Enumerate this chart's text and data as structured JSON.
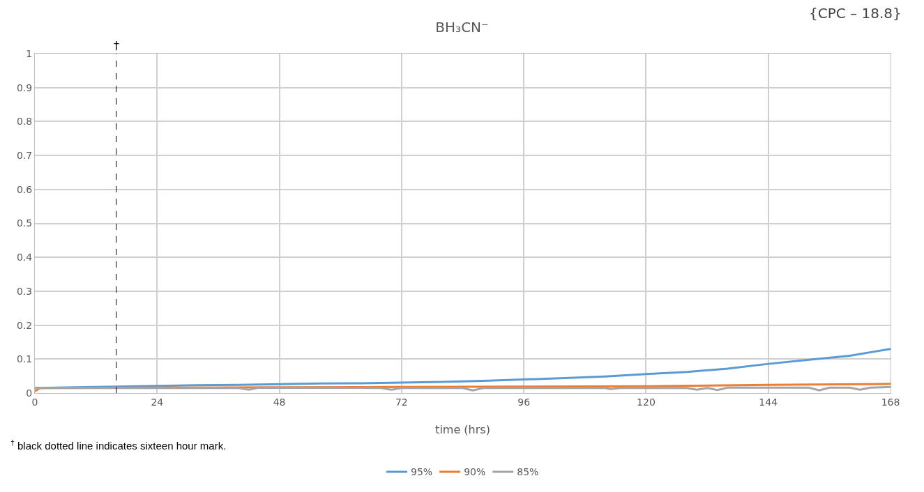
{
  "chart_data": {
    "type": "line",
    "title": "BH₃CN⁻",
    "xlabel": "time (hrs)",
    "annotations": [
      "{CPC – 18.8}",
      "$^{†}$ black dotted line indicates sixteen hour mark."
    ],
    "xlim": [
      0,
      168
    ],
    "xticks": [
      0,
      24,
      48,
      72,
      96,
      120,
      144,
      168
    ],
    "ylim": [
      0,
      1
    ],
    "yticks": [
      0,
      0.1,
      0.2,
      0.3,
      0.4,
      0.5,
      0.6,
      0.7,
      0.8,
      0.9,
      1
    ],
    "grid": true,
    "legend": "bottom",
    "marker": "none",
    "line_style": "solid",
    "ref_lines": [
      {
        "axis": "x",
        "value": 16,
        "label": "†",
        "color": "#000000",
        "line_style": "dashed"
      }
    ],
    "series": [
      {
        "name": "95%",
        "color": "#5b9bd5",
        "x": [
          0,
          8,
          16,
          24,
          32,
          40,
          48,
          56,
          64,
          72,
          80,
          88,
          96,
          104,
          112,
          120,
          128,
          136,
          144,
          152,
          160,
          168
        ],
        "values": [
          0.015,
          0.017,
          0.019,
          0.021,
          0.023,
          0.024,
          0.026,
          0.028,
          0.029,
          0.031,
          0.033,
          0.036,
          0.04,
          0.044,
          0.049,
          0.056,
          0.062,
          0.072,
          0.086,
          0.098,
          0.11,
          0.13
        ]
      },
      {
        "name": "90%",
        "color": "#ed7d31",
        "x": [
          0,
          1,
          24,
          48,
          72,
          96,
          120,
          144,
          168
        ],
        "values": [
          0.005,
          0.015,
          0.016,
          0.017,
          0.018,
          0.019,
          0.02,
          0.024,
          0.027
        ]
      },
      {
        "name": "85%",
        "color": "#a5a5a5",
        "x": [
          0,
          24,
          40,
          42,
          44,
          68,
          70,
          72,
          84,
          86,
          88,
          112,
          113,
          115,
          128,
          130,
          132,
          134,
          136,
          152,
          154,
          156,
          160,
          162,
          164,
          168
        ],
        "values": [
          0.015,
          0.015,
          0.015,
          0.01,
          0.016,
          0.015,
          0.01,
          0.015,
          0.015,
          0.008,
          0.015,
          0.015,
          0.012,
          0.015,
          0.015,
          0.01,
          0.015,
          0.009,
          0.016,
          0.016,
          0.008,
          0.016,
          0.016,
          0.01,
          0.016,
          0.018
        ]
      }
    ]
  }
}
